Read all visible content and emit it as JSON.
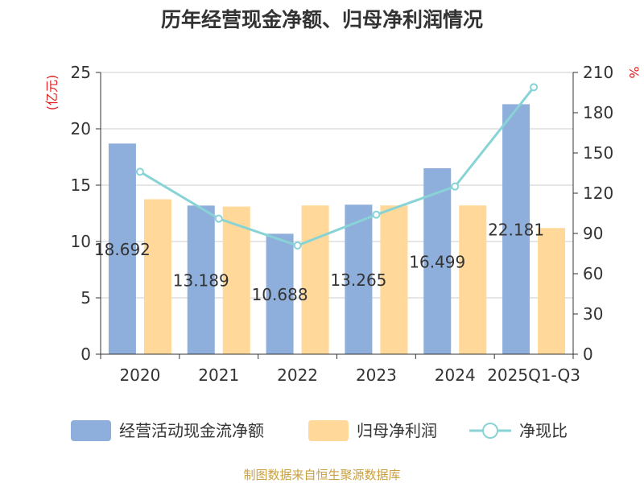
{
  "chart_data": {
    "type": "bar",
    "title": "历年经营现金净额、归母净利润情况",
    "categories": [
      "2020",
      "2021",
      "2022",
      "2023",
      "2024",
      "2025Q1-Q3"
    ],
    "series": [
      {
        "name": "经营活动现金流净额",
        "values": [
          18.692,
          13.189,
          10.688,
          13.265,
          16.499,
          22.181
        ],
        "color": "#8eaedb",
        "axis": "left",
        "kind": "bar"
      },
      {
        "name": "归母净利润",
        "values": [
          13.75,
          13.1,
          13.2,
          13.2,
          13.2,
          11.2
        ],
        "color": "#ffd89a",
        "axis": "left",
        "kind": "bar"
      },
      {
        "name": "净现比",
        "values": [
          136,
          101,
          81,
          104,
          125,
          199
        ],
        "color": "#88d3d6",
        "axis": "right",
        "kind": "line"
      }
    ],
    "data_labels": [
      "18.692",
      "13.189",
      "10.688",
      "13.265",
      "16.499",
      "22.181"
    ],
    "y_left": {
      "unit": "(亿元)",
      "ylim": [
        0,
        25
      ],
      "ticks": [
        "0",
        "5",
        "10",
        "15",
        "20",
        "25"
      ]
    },
    "y_right": {
      "unit": "%",
      "ylim": [
        0,
        210
      ],
      "ticks": [
        "0",
        "30",
        "60",
        "90",
        "120",
        "150",
        "180",
        "210"
      ]
    },
    "grid": true,
    "legend": "bottom",
    "source": "制图数据来自恒生聚源数据库"
  }
}
